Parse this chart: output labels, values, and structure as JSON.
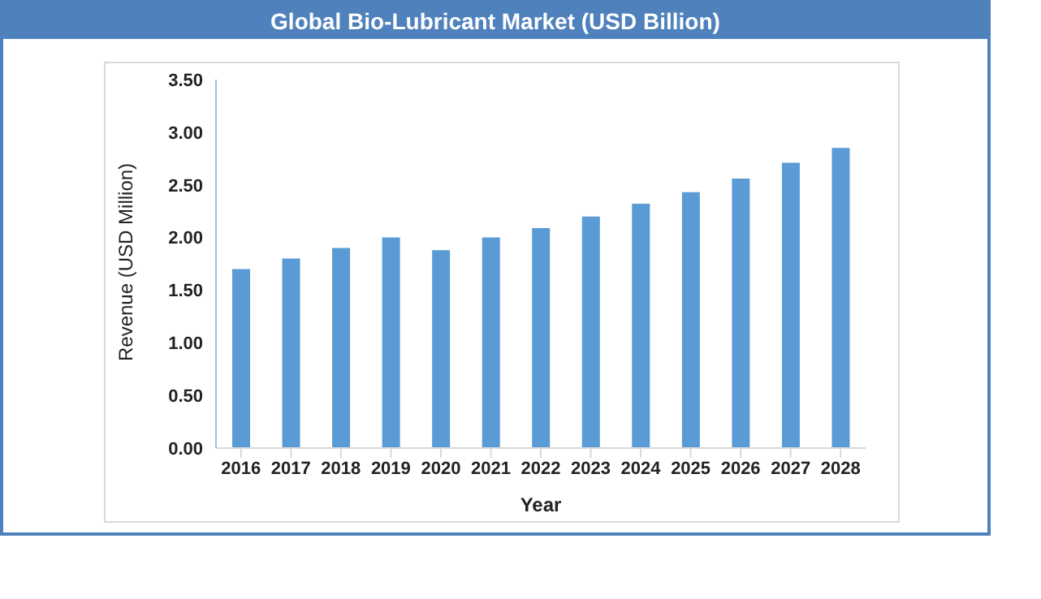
{
  "chart_data": {
    "type": "bar",
    "title": "Global Bio-Lubricant Market (USD Billion)",
    "xlabel": "Year",
    "ylabel": "Revenue (USD Million)",
    "categories": [
      "2016",
      "2017",
      "2018",
      "2019",
      "2020",
      "2021",
      "2022",
      "2023",
      "2024",
      "2025",
      "2026",
      "2027",
      "2028"
    ],
    "values": [
      1.7,
      1.8,
      1.9,
      2.0,
      1.88,
      2.0,
      2.09,
      2.2,
      2.32,
      2.43,
      2.56,
      2.71,
      2.85
    ],
    "color": "#5b9bd5",
    "ylim": [
      0,
      3.5
    ],
    "yticks": [
      {
        "value": 0,
        "label": "0.00"
      },
      {
        "value": 0.5,
        "label": "0.50"
      },
      {
        "value": 1,
        "label": "1.00"
      },
      {
        "value": 1.5,
        "label": "1.50"
      },
      {
        "value": 2,
        "label": "2.00"
      },
      {
        "value": 2.5,
        "label": "2.50"
      },
      {
        "value": 3,
        "label": "3.00"
      },
      {
        "value": 3.5,
        "label": "3.50"
      }
    ],
    "grid": false,
    "legend": false
  }
}
